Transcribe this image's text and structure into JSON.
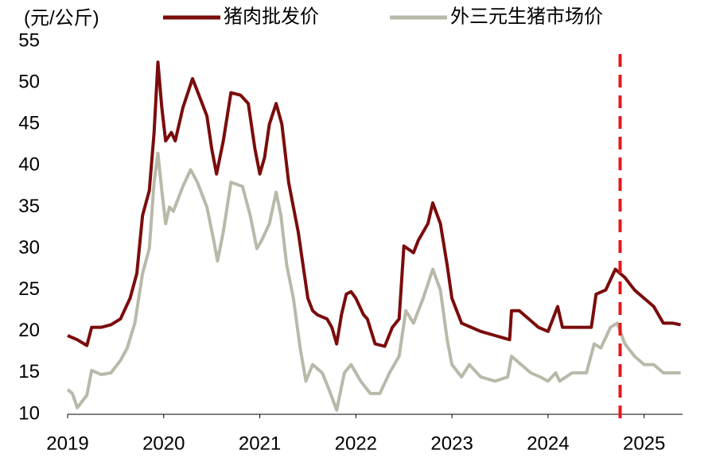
{
  "chart_data": {
    "type": "line",
    "y_label": "(元/公斤)",
    "ylim": [
      10,
      55
    ],
    "yticks": [
      10,
      15,
      20,
      25,
      30,
      35,
      40,
      45,
      50,
      55
    ],
    "xlim": [
      2019,
      2025.4
    ],
    "xticks": [
      2019,
      2020,
      2021,
      2022,
      2023,
      2024,
      2025
    ],
    "vline": {
      "x": 2024.75,
      "color": "#e8141b"
    },
    "series": [
      {
        "name": "猪肉批发价",
        "color": "#7b0c0c",
        "x": [
          2019.0,
          2019.1,
          2019.2,
          2019.25,
          2019.35,
          2019.45,
          2019.55,
          2019.65,
          2019.72,
          2019.78,
          2019.85,
          2019.9,
          2019.94,
          2019.98,
          2020.02,
          2020.08,
          2020.12,
          2020.2,
          2020.3,
          2020.35,
          2020.45,
          2020.5,
          2020.55,
          2020.62,
          2020.7,
          2020.8,
          2020.88,
          2020.95,
          2021.0,
          2021.05,
          2021.1,
          2021.17,
          2021.23,
          2021.3,
          2021.35,
          2021.4,
          2021.45,
          2021.5,
          2021.55,
          2021.6,
          2021.7,
          2021.75,
          2021.8,
          2021.85,
          2021.9,
          2021.95,
          2022.0,
          2022.08,
          2022.12,
          2022.2,
          2022.3,
          2022.38,
          2022.45,
          2022.5,
          2022.6,
          2022.65,
          2022.75,
          2022.8,
          2022.88,
          2022.95,
          2023.0,
          2023.1,
          2023.2,
          2023.3,
          2023.45,
          2023.6,
          2023.62,
          2023.7,
          2023.8,
          2023.9,
          2024.0,
          2024.1,
          2024.15,
          2024.3,
          2024.45,
          2024.5,
          2024.6,
          2024.7,
          2024.8,
          2024.9,
          2025.0,
          2025.1,
          2025.2,
          2025.3,
          2025.38
        ],
        "values": [
          19.5,
          19,
          18.3,
          20.5,
          20.5,
          20.8,
          21.5,
          24,
          27,
          34,
          37,
          44,
          52.5,
          47,
          43,
          44,
          43,
          47,
          50.5,
          49,
          46,
          42,
          39,
          43,
          48.8,
          48.5,
          47.5,
          42,
          39,
          41,
          45,
          47.5,
          45,
          38,
          35,
          32,
          28,
          24,
          22.5,
          22,
          21.5,
          20.5,
          18.5,
          22,
          24.5,
          24.8,
          24,
          22,
          21.5,
          18.5,
          18.2,
          20.5,
          21.5,
          30.3,
          29.5,
          31,
          33,
          35.5,
          33,
          28,
          24,
          21,
          20.5,
          20,
          19.5,
          19,
          22.5,
          22.5,
          21.5,
          20.5,
          20,
          23,
          20.5,
          20.5,
          20.5,
          24.5,
          25,
          27.5,
          26.5,
          25,
          24,
          23,
          21,
          21,
          20.8
        ]
      },
      {
        "name": "外三元生猪市场价",
        "color": "#b9b9aa",
        "x": [
          2019.0,
          2019.05,
          2019.1,
          2019.2,
          2019.25,
          2019.35,
          2019.45,
          2019.55,
          2019.62,
          2019.7,
          2019.78,
          2019.85,
          2019.9,
          2019.94,
          2019.98,
          2020.02,
          2020.06,
          2020.1,
          2020.2,
          2020.28,
          2020.35,
          2020.45,
          2020.52,
          2020.56,
          2020.62,
          2020.7,
          2020.82,
          2020.9,
          2020.97,
          2021.02,
          2021.1,
          2021.17,
          2021.22,
          2021.28,
          2021.35,
          2021.42,
          2021.48,
          2021.55,
          2021.65,
          2021.72,
          2021.8,
          2021.88,
          2021.95,
          2022.05,
          2022.15,
          2022.25,
          2022.35,
          2022.45,
          2022.52,
          2022.6,
          2022.7,
          2022.8,
          2022.88,
          2022.95,
          2023.0,
          2023.1,
          2023.18,
          2023.3,
          2023.45,
          2023.58,
          2023.62,
          2023.72,
          2023.82,
          2023.92,
          2024.0,
          2024.08,
          2024.12,
          2024.25,
          2024.4,
          2024.48,
          2024.55,
          2024.65,
          2024.72,
          2024.8,
          2024.9,
          2025.0,
          2025.1,
          2025.2,
          2025.35,
          2025.38
        ],
        "values": [
          13,
          12.5,
          10.8,
          12.3,
          15.3,
          14.8,
          15,
          16.5,
          18,
          21,
          27,
          30,
          38,
          41.5,
          37,
          33,
          35,
          34.5,
          37.5,
          39.5,
          38,
          35,
          31,
          28.5,
          32,
          38,
          37.5,
          34,
          30,
          31,
          33,
          36.8,
          34,
          28,
          24,
          18,
          14,
          16,
          15,
          13,
          10.5,
          15,
          16,
          14,
          12.5,
          12.5,
          15,
          17,
          22.5,
          21,
          24,
          27.5,
          25,
          19,
          16,
          14.5,
          16,
          14.5,
          14,
          14.5,
          17,
          16,
          15,
          14.5,
          14,
          15,
          14,
          15,
          15,
          18.5,
          18,
          20.5,
          21,
          18.5,
          17,
          16,
          16,
          15,
          15,
          15
        ]
      }
    ]
  }
}
